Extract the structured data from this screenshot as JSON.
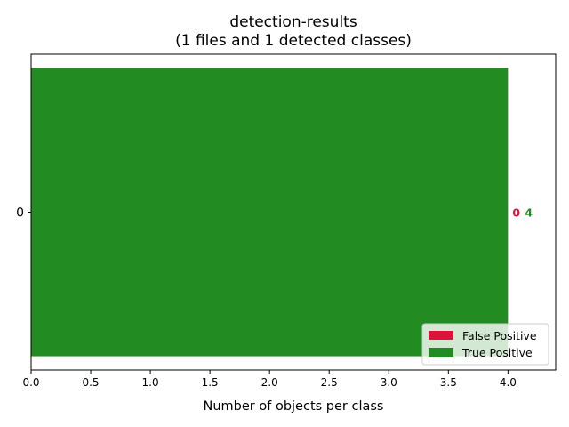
{
  "chart_data": {
    "type": "bar",
    "orientation": "horizontal",
    "stacked": true,
    "title": "detection-results",
    "subtitle": "(1 files and 1 detected classes)",
    "xlabel": "Number of objects per class",
    "ylabel": "",
    "xlim": [
      0,
      4.4
    ],
    "x_ticks": [
      "0.0",
      "0.5",
      "1.0",
      "1.5",
      "2.0",
      "2.5",
      "3.0",
      "3.5",
      "4.0"
    ],
    "categories": [
      "0"
    ],
    "series": [
      {
        "name": "False Positive",
        "values": [
          0
        ],
        "color": "#DC143C"
      },
      {
        "name": "True Positive",
        "values": [
          4
        ],
        "color": "#228B22"
      }
    ],
    "data_labels": [
      {
        "text": "0",
        "color": "#DC143C"
      },
      {
        "text": "4",
        "color": "#228B22"
      }
    ],
    "legend": {
      "position": "lower-right",
      "items": [
        {
          "label": "False Positive",
          "color": "#DC143C"
        },
        {
          "label": "True Positive",
          "color": "#228B22"
        }
      ]
    },
    "grid": false
  }
}
